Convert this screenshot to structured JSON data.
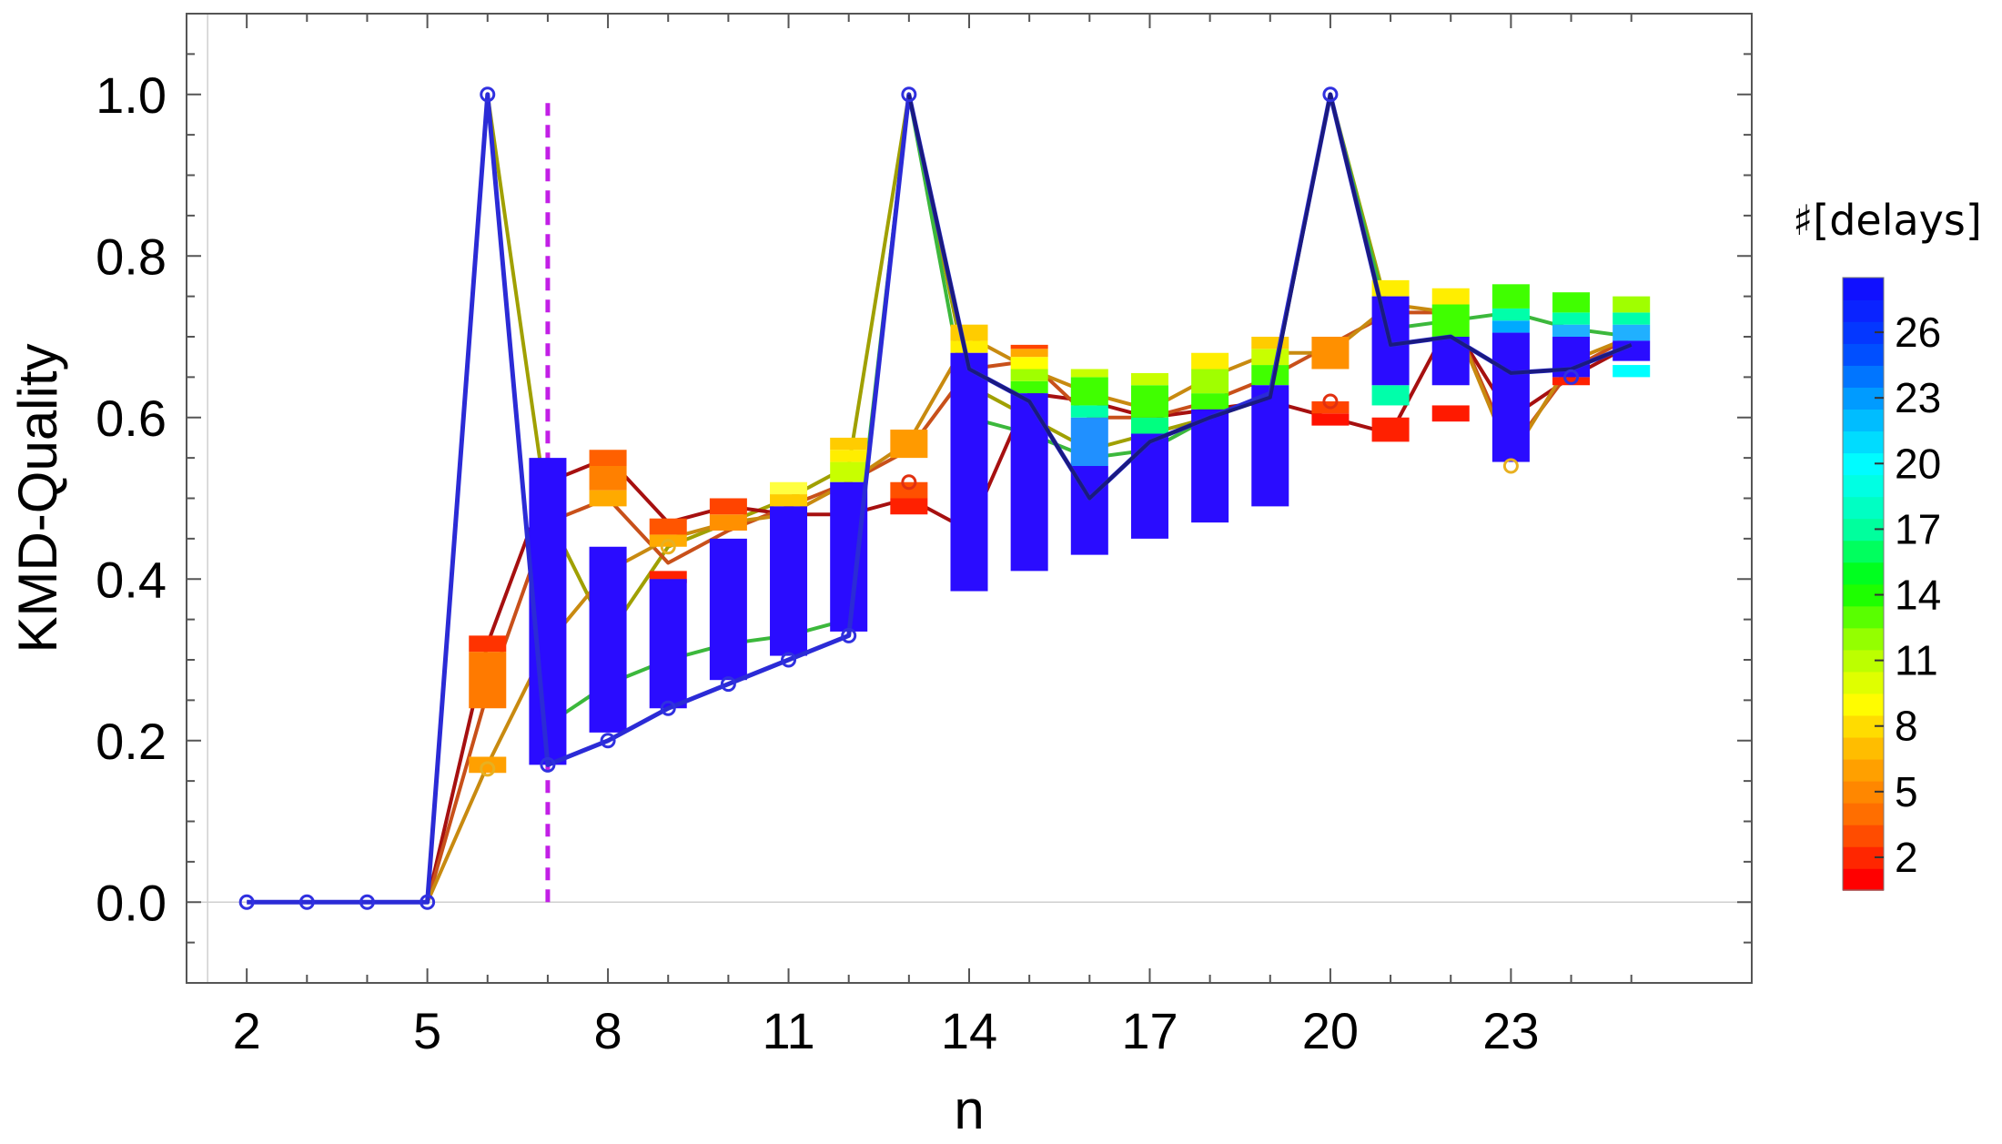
{
  "chart_data": {
    "type": "line",
    "xlabel": "n",
    "ylabel": "KMD-Quality",
    "xlim": [
      1,
      27
    ],
    "ylim": [
      -0.1,
      1.1
    ],
    "x_ticks": [
      "2",
      "5",
      "8",
      "11",
      "14",
      "17",
      "20",
      "23"
    ],
    "y_ticks": [
      "0.0",
      "0.2",
      "0.4",
      "0.6",
      "0.8",
      "1.0"
    ],
    "grid": false,
    "vertical_reference_line": {
      "x": 7,
      "from": 0.0,
      "to": 1.0,
      "color": "#c21fe6",
      "style": "dashed"
    },
    "legend": {
      "title": "♯[delays]",
      "placement": "right",
      "type": "color-scale",
      "range": [
        1,
        28
      ],
      "ticks": [
        "2",
        "5",
        "8",
        "11",
        "14",
        "17",
        "20",
        "23",
        "26"
      ],
      "colors": [
        "#ff0000",
        "#ff6600",
        "#ffaa00",
        "#ffff00",
        "#a0ff00",
        "#00ff00",
        "#00ffaa",
        "#00ffff",
        "#00aaff",
        "#0044ff",
        "#1010ff"
      ]
    },
    "series": [
      {
        "name": "",
        "color": "#2b2bd6",
        "x": [
          2,
          3,
          4,
          5,
          6,
          7,
          8,
          9,
          10,
          11,
          12,
          13,
          14,
          15,
          16,
          17,
          18,
          19,
          20,
          21,
          22,
          23,
          24,
          25
        ],
        "values": [
          0,
          0,
          0,
          0,
          1.0,
          0.17,
          0.2,
          0.24,
          0.27,
          0.3,
          0.33,
          1.0,
          0.66,
          0.62,
          0.5,
          0.57,
          0.6,
          0.63,
          1.0,
          0.69,
          0.7,
          0.655,
          0.66,
          0.69
        ]
      },
      {
        "name": "",
        "color": "#a0a000",
        "x": [
          5,
          6,
          7,
          8,
          9,
          10,
          11,
          12,
          13,
          14,
          15,
          16,
          17,
          18,
          19,
          20,
          21
        ],
        "values": [
          0,
          1.0,
          0.48,
          0.33,
          0.44,
          0.47,
          0.5,
          0.54,
          1.0,
          0.64,
          0.6,
          0.56,
          0.58,
          0.6,
          0.63,
          1.0,
          0.72
        ]
      },
      {
        "name": "",
        "color": "#3cb83c",
        "x": [
          7,
          8,
          9,
          10,
          11,
          12,
          13,
          14,
          15,
          16,
          17,
          18,
          19,
          20,
          21,
          22,
          23,
          24,
          25
        ],
        "values": [
          0.22,
          0.27,
          0.3,
          0.32,
          0.33,
          0.35,
          1.0,
          0.6,
          0.58,
          0.55,
          0.56,
          0.6,
          0.63,
          1.0,
          0.71,
          0.72,
          0.73,
          0.71,
          0.7
        ]
      },
      {
        "name": "",
        "color": "#a61010",
        "x": [
          5,
          6,
          7,
          8,
          9,
          10,
          11,
          12,
          13,
          14,
          15,
          16,
          17,
          18,
          19,
          20,
          21,
          22,
          23,
          24,
          25
        ],
        "values": [
          0,
          0.32,
          0.52,
          0.55,
          0.47,
          0.49,
          0.48,
          0.48,
          0.5,
          0.46,
          0.63,
          0.62,
          0.6,
          0.61,
          0.62,
          0.6,
          0.58,
          0.72,
          0.6,
          0.65,
          0.69
        ]
      },
      {
        "name": "",
        "color": "#c8501a",
        "x": [
          5,
          6,
          7,
          8,
          9,
          10,
          11,
          12,
          13,
          14,
          15,
          16,
          17,
          18,
          19,
          20,
          21,
          22,
          23,
          24,
          25
        ],
        "values": [
          0,
          0.26,
          0.47,
          0.5,
          0.42,
          0.46,
          0.49,
          0.52,
          0.56,
          0.66,
          0.67,
          0.6,
          0.6,
          0.62,
          0.65,
          0.69,
          0.73,
          0.73,
          0.56,
          0.66,
          0.7
        ]
      },
      {
        "name": "",
        "color": "#c88a10",
        "x": [
          5,
          6,
          7,
          8,
          9,
          10,
          11,
          12,
          13,
          14,
          15,
          16,
          17,
          18,
          19,
          20,
          21,
          22,
          23,
          24,
          25
        ],
        "values": [
          0,
          0.17,
          0.32,
          0.41,
          0.45,
          0.47,
          0.48,
          0.52,
          0.57,
          0.7,
          0.66,
          0.63,
          0.61,
          0.65,
          0.68,
          0.68,
          0.74,
          0.73,
          0.55,
          0.67,
          0.7
        ]
      },
      {
        "name": "",
        "color": "#1a1a80",
        "x": [
          13,
          14,
          15,
          16,
          17,
          18,
          19,
          20,
          21,
          22,
          23,
          24,
          25
        ],
        "values": [
          1.0,
          0.66,
          0.62,
          0.5,
          0.57,
          0.6,
          0.625,
          1.0,
          0.69,
          0.7,
          0.655,
          0.66,
          0.69
        ]
      }
    ],
    "markers": [
      {
        "x": 2,
        "y": 0
      },
      {
        "x": 3,
        "y": 0
      },
      {
        "x": 4,
        "y": 0
      },
      {
        "x": 5,
        "y": 0
      },
      {
        "x": 6,
        "y": 1.0
      },
      {
        "x": 7,
        "y": 0.17
      },
      {
        "x": 8,
        "y": 0.2
      },
      {
        "x": 9,
        "y": 0.24
      },
      {
        "x": 10,
        "y": 0.27
      },
      {
        "x": 11,
        "y": 0.3
      },
      {
        "x": 12,
        "y": 0.33
      },
      {
        "x": 13,
        "y": 1.0
      },
      {
        "x": 20,
        "y": 1.0
      },
      {
        "x": 24,
        "y": 0.65
      }
    ],
    "orange_markers": [
      {
        "x": 6,
        "y": 0.165,
        "color": "#e8b020"
      },
      {
        "x": 9,
        "y": 0.44,
        "color": "#e8b020"
      },
      {
        "x": 23,
        "y": 0.54,
        "color": "#e8b020"
      },
      {
        "x": 13,
        "y": 0.52,
        "color": "#e03010"
      },
      {
        "x": 20,
        "y": 0.62,
        "color": "#e03010"
      }
    ],
    "boxes": [
      {
        "x": 7,
        "low": 0.17,
        "high": 0.55
      },
      {
        "x": 8,
        "low": 0.21,
        "high": 0.44
      },
      {
        "x": 9,
        "low": 0.24,
        "high": 0.4
      },
      {
        "x": 10,
        "low": 0.275,
        "high": 0.45
      },
      {
        "x": 11,
        "low": 0.305,
        "high": 0.49
      },
      {
        "x": 12,
        "low": 0.335,
        "high": 0.52
      },
      {
        "x": 14,
        "low": 0.385,
        "high": 0.68
      },
      {
        "x": 15,
        "low": 0.41,
        "high": 0.63
      },
      {
        "x": 16,
        "low": 0.43,
        "high": 0.54
      },
      {
        "x": 17,
        "low": 0.45,
        "high": 0.58
      },
      {
        "x": 18,
        "low": 0.47,
        "high": 0.61
      },
      {
        "x": 19,
        "low": 0.49,
        "high": 0.64
      },
      {
        "x": 21,
        "low": 0.64,
        "high": 0.75
      },
      {
        "x": 22,
        "low": 0.64,
        "high": 0.7
      },
      {
        "x": 23,
        "low": 0.545,
        "high": 0.705
      },
      {
        "x": 24,
        "low": 0.65,
        "high": 0.7
      },
      {
        "x": 25,
        "low": 0.67,
        "high": 0.695
      }
    ],
    "patches": [
      {
        "x": 6,
        "low": 0.24,
        "high": 0.31,
        "color": "#ff7a00"
      },
      {
        "x": 6,
        "low": 0.31,
        "high": 0.33,
        "color": "#ff3300"
      },
      {
        "x": 6,
        "low": 0.16,
        "high": 0.18,
        "color": "#ffa000"
      },
      {
        "x": 8,
        "low": 0.49,
        "high": 0.51,
        "color": "#ffaa00"
      },
      {
        "x": 8,
        "low": 0.51,
        "high": 0.54,
        "color": "#ff8000"
      },
      {
        "x": 8,
        "low": 0.54,
        "high": 0.56,
        "color": "#ff6000"
      },
      {
        "x": 9,
        "low": 0.44,
        "high": 0.455,
        "color": "#ffaa00"
      },
      {
        "x": 9,
        "low": 0.455,
        "high": 0.475,
        "color": "#ff5500"
      },
      {
        "x": 9,
        "low": 0.395,
        "high": 0.41,
        "color": "#ff2200"
      },
      {
        "x": 10,
        "low": 0.46,
        "high": 0.48,
        "color": "#ff9000"
      },
      {
        "x": 10,
        "low": 0.48,
        "high": 0.5,
        "color": "#ff4400"
      },
      {
        "x": 11,
        "low": 0.49,
        "high": 0.505,
        "color": "#ffcc00"
      },
      {
        "x": 11,
        "low": 0.505,
        "high": 0.52,
        "color": "#ffff40"
      },
      {
        "x": 12,
        "low": 0.52,
        "high": 0.545,
        "color": "#c8ff00"
      },
      {
        "x": 12,
        "low": 0.545,
        "high": 0.56,
        "color": "#ffee00"
      },
      {
        "x": 12,
        "low": 0.56,
        "high": 0.575,
        "color": "#ffcc00"
      },
      {
        "x": 13,
        "low": 0.55,
        "high": 0.585,
        "color": "#ff9a00"
      },
      {
        "x": 13,
        "low": 0.48,
        "high": 0.5,
        "color": "#ff2000"
      },
      {
        "x": 13,
        "low": 0.5,
        "high": 0.52,
        "color": "#ff5000"
      },
      {
        "x": 14,
        "low": 0.68,
        "high": 0.695,
        "color": "#ffee00"
      },
      {
        "x": 14,
        "low": 0.695,
        "high": 0.715,
        "color": "#ffcc00"
      },
      {
        "x": 15,
        "low": 0.63,
        "high": 0.645,
        "color": "#40ff00"
      },
      {
        "x": 15,
        "low": 0.645,
        "high": 0.66,
        "color": "#a0ff00"
      },
      {
        "x": 15,
        "low": 0.66,
        "high": 0.675,
        "color": "#ffff00"
      },
      {
        "x": 15,
        "low": 0.675,
        "high": 0.685,
        "color": "#ffaa00"
      },
      {
        "x": 15,
        "low": 0.685,
        "high": 0.69,
        "color": "#ff4400"
      },
      {
        "x": 16,
        "low": 0.54,
        "high": 0.6,
        "color": "#2090ff"
      },
      {
        "x": 16,
        "low": 0.6,
        "high": 0.615,
        "color": "#00ffaa"
      },
      {
        "x": 16,
        "low": 0.615,
        "high": 0.65,
        "color": "#40ff00"
      },
      {
        "x": 16,
        "low": 0.65,
        "high": 0.66,
        "color": "#c8ff00"
      },
      {
        "x": 17,
        "low": 0.58,
        "high": 0.6,
        "color": "#00ff80"
      },
      {
        "x": 17,
        "low": 0.6,
        "high": 0.64,
        "color": "#40ff00"
      },
      {
        "x": 17,
        "low": 0.64,
        "high": 0.655,
        "color": "#c8ff00"
      },
      {
        "x": 18,
        "low": 0.61,
        "high": 0.63,
        "color": "#40ff00"
      },
      {
        "x": 18,
        "low": 0.63,
        "high": 0.66,
        "color": "#a0ff00"
      },
      {
        "x": 18,
        "low": 0.66,
        "high": 0.68,
        "color": "#ffee00"
      },
      {
        "x": 19,
        "low": 0.64,
        "high": 0.665,
        "color": "#40ff00"
      },
      {
        "x": 19,
        "low": 0.665,
        "high": 0.685,
        "color": "#c8ff00"
      },
      {
        "x": 19,
        "low": 0.685,
        "high": 0.7,
        "color": "#ffcc00"
      },
      {
        "x": 20,
        "low": 0.66,
        "high": 0.7,
        "color": "#ff9000"
      },
      {
        "x": 20,
        "low": 0.59,
        "high": 0.605,
        "color": "#ff1000"
      },
      {
        "x": 20,
        "low": 0.605,
        "high": 0.62,
        "color": "#ff4400"
      },
      {
        "x": 21,
        "low": 0.57,
        "high": 0.6,
        "color": "#ff2000"
      },
      {
        "x": 21,
        "low": 0.615,
        "high": 0.64,
        "color": "#00ffaa"
      },
      {
        "x": 21,
        "low": 0.75,
        "high": 0.77,
        "color": "#ffee00"
      },
      {
        "x": 22,
        "low": 0.595,
        "high": 0.615,
        "color": "#ff1a00"
      },
      {
        "x": 22,
        "low": 0.7,
        "high": 0.74,
        "color": "#40ff00"
      },
      {
        "x": 22,
        "low": 0.74,
        "high": 0.76,
        "color": "#ffee00"
      },
      {
        "x": 23,
        "low": 0.705,
        "high": 0.72,
        "color": "#00aaff"
      },
      {
        "x": 23,
        "low": 0.72,
        "high": 0.735,
        "color": "#00ffaa"
      },
      {
        "x": 23,
        "low": 0.735,
        "high": 0.765,
        "color": "#40ff00"
      },
      {
        "x": 24,
        "low": 0.64,
        "high": 0.65,
        "color": "#ff2000"
      },
      {
        "x": 24,
        "low": 0.7,
        "high": 0.715,
        "color": "#20b0ff"
      },
      {
        "x": 24,
        "low": 0.715,
        "high": 0.73,
        "color": "#00ffaa"
      },
      {
        "x": 24,
        "low": 0.73,
        "high": 0.755,
        "color": "#40ff00"
      },
      {
        "x": 25,
        "low": 0.65,
        "high": 0.665,
        "color": "#00ffff"
      },
      {
        "x": 25,
        "low": 0.695,
        "high": 0.715,
        "color": "#20b0ff"
      },
      {
        "x": 25,
        "low": 0.715,
        "high": 0.73,
        "color": "#00ffaa"
      },
      {
        "x": 25,
        "low": 0.73,
        "high": 0.75,
        "color": "#a0ff00"
      }
    ]
  }
}
